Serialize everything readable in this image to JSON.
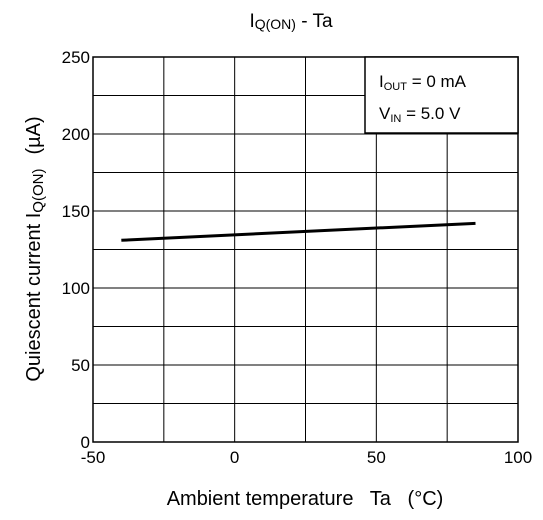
{
  "chart_data": {
    "type": "line",
    "title": "IQ(ON) - Ta",
    "title_parts": {
      "main": "I",
      "sub": "Q(ON)",
      "rest": " - Ta"
    },
    "xlabel": "Ambient temperature   Ta   (°C)",
    "ylabel": {
      "main": "Quiescent current I",
      "sub": "Q(ON)",
      "unit": "(µA)"
    },
    "xlim": [
      -50,
      100
    ],
    "ylim": [
      0,
      250
    ],
    "x_ticks": [
      -50,
      0,
      50,
      100
    ],
    "y_ticks": [
      0,
      50,
      100,
      150,
      200,
      250
    ],
    "x_gridlines": [
      -50,
      -25,
      0,
      25,
      50,
      75,
      100
    ],
    "y_gridlines": [
      0,
      25,
      50,
      75,
      100,
      125,
      150,
      175,
      200,
      225,
      250
    ],
    "grid": true,
    "series": [
      {
        "x": [
          -40,
          85
        ],
        "y": [
          131,
          142
        ],
        "color": "#000000"
      }
    ],
    "conditions": {
      "iout": {
        "main": "I",
        "sub": "OUT",
        "rest": " = 0 mA"
      },
      "vin": {
        "main": "V",
        "sub": "IN",
        "rest": " = 5.0 V"
      }
    }
  }
}
